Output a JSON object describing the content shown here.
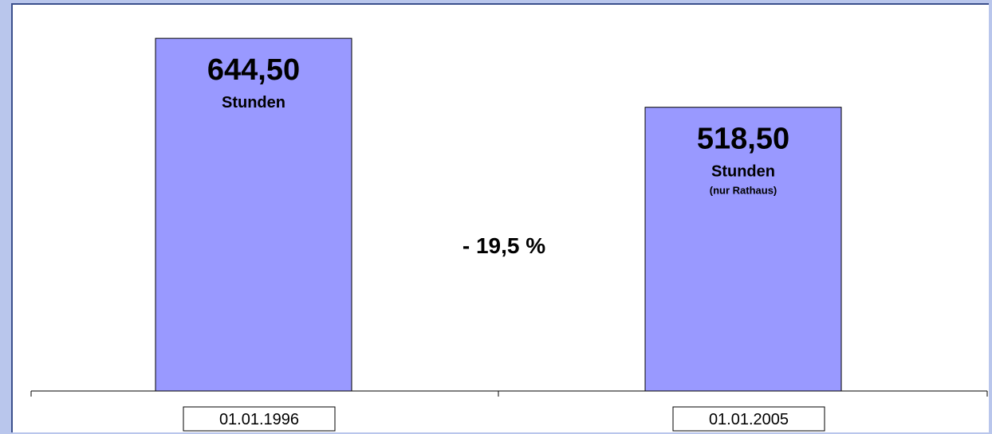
{
  "chart_data": {
    "type": "bar",
    "categories": [
      "01.01.1996",
      "01.01.2005"
    ],
    "values": [
      644.5,
      518.5
    ],
    "ylim": [
      0,
      700
    ],
    "grid": false,
    "bar_labels": [
      {
        "value": "644,50",
        "unit": "Stunden",
        "note": ""
      },
      {
        "value": "518,50",
        "unit": "Stunden",
        "note": "(nur Rathaus)"
      }
    ],
    "annotation": "- 19,5 %",
    "colors": {
      "bar": "#9999ff",
      "background": "#b9c6ec",
      "plot": "#ffffff"
    }
  }
}
